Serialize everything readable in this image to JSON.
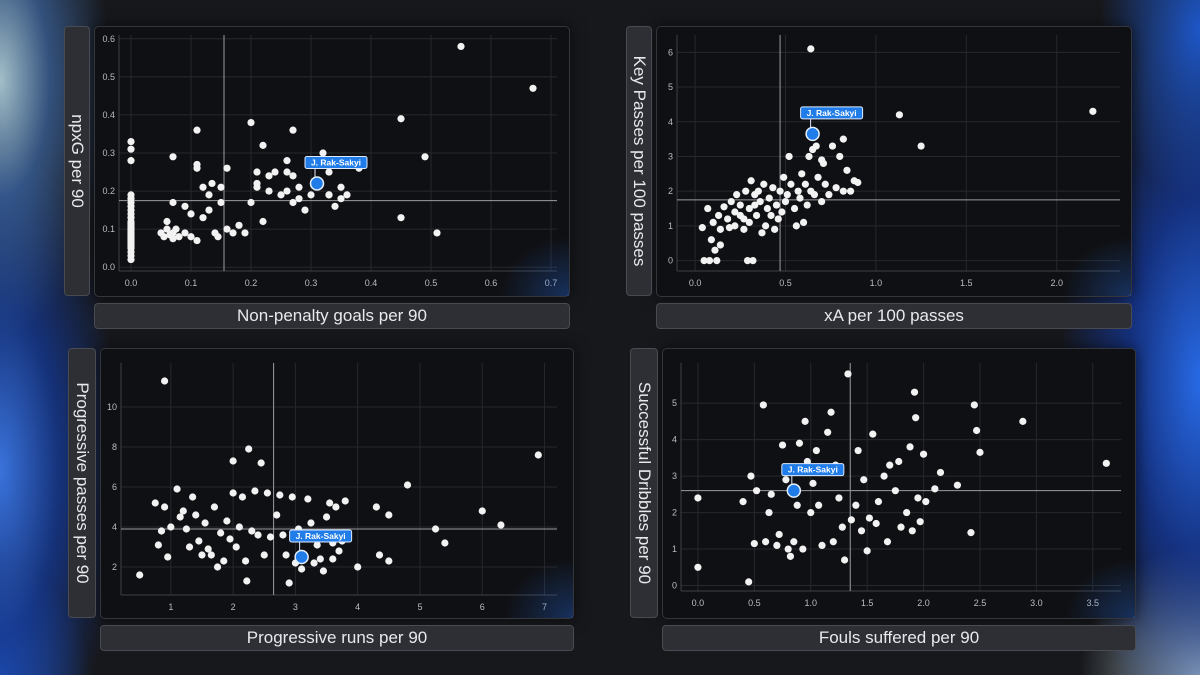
{
  "chart_data": [
    {
      "type": "scatter",
      "xlabel": "Non-penalty goals per 90",
      "ylabel": "npxG per 90",
      "xlim": [
        -0.02,
        0.71
      ],
      "ylim": [
        -0.01,
        0.61
      ],
      "xticks": [
        0.0,
        0.1,
        0.2,
        0.3,
        0.4,
        0.5,
        0.6,
        0.7
      ],
      "yticks": [
        0.0,
        0.1,
        0.2,
        0.3,
        0.4,
        0.5,
        0.6
      ],
      "tick_decimals": 1,
      "avg_x": 0.155,
      "avg_y": 0.175,
      "highlight": {
        "name": "J. Rak-Sakyi",
        "x": 0.31,
        "y": 0.22
      },
      "points": [
        [
          0.0,
          0.33
        ],
        [
          0.0,
          0.31
        ],
        [
          0.0,
          0.28
        ],
        [
          0.0,
          0.19
        ],
        [
          0.0,
          0.18
        ],
        [
          0.0,
          0.17
        ],
        [
          0.0,
          0.16
        ],
        [
          0.0,
          0.15
        ],
        [
          0.0,
          0.14
        ],
        [
          0.0,
          0.13
        ],
        [
          0.0,
          0.12
        ],
        [
          0.0,
          0.115
        ],
        [
          0.0,
          0.11
        ],
        [
          0.0,
          0.105
        ],
        [
          0.0,
          0.1
        ],
        [
          0.0,
          0.095
        ],
        [
          0.0,
          0.09
        ],
        [
          0.0,
          0.085
        ],
        [
          0.0,
          0.08
        ],
        [
          0.0,
          0.075
        ],
        [
          0.0,
          0.07
        ],
        [
          0.0,
          0.065
        ],
        [
          0.0,
          0.06
        ],
        [
          0.0,
          0.055
        ],
        [
          0.0,
          0.05
        ],
        [
          0.0,
          0.04
        ],
        [
          0.0,
          0.03
        ],
        [
          0.0,
          0.02
        ],
        [
          0.05,
          0.09
        ],
        [
          0.055,
          0.08
        ],
        [
          0.06,
          0.12
        ],
        [
          0.06,
          0.1
        ],
        [
          0.065,
          0.085
        ],
        [
          0.07,
          0.17
        ],
        [
          0.07,
          0.09
        ],
        [
          0.07,
          0.075
        ],
        [
          0.075,
          0.1
        ],
        [
          0.08,
          0.08
        ],
        [
          0.07,
          0.29
        ],
        [
          0.09,
          0.16
        ],
        [
          0.09,
          0.09
        ],
        [
          0.1,
          0.08
        ],
        [
          0.1,
          0.14
        ],
        [
          0.11,
          0.36
        ],
        [
          0.11,
          0.27
        ],
        [
          0.11,
          0.26
        ],
        [
          0.11,
          0.07
        ],
        [
          0.12,
          0.21
        ],
        [
          0.12,
          0.13
        ],
        [
          0.13,
          0.15
        ],
        [
          0.13,
          0.19
        ],
        [
          0.135,
          0.22
        ],
        [
          0.14,
          0.09
        ],
        [
          0.145,
          0.08
        ],
        [
          0.15,
          0.21
        ],
        [
          0.15,
          0.17
        ],
        [
          0.16,
          0.1
        ],
        [
          0.16,
          0.26
        ],
        [
          0.17,
          0.09
        ],
        [
          0.18,
          0.11
        ],
        [
          0.19,
          0.09
        ],
        [
          0.2,
          0.38
        ],
        [
          0.2,
          0.17
        ],
        [
          0.21,
          0.22
        ],
        [
          0.21,
          0.25
        ],
        [
          0.21,
          0.21
        ],
        [
          0.22,
          0.32
        ],
        [
          0.22,
          0.12
        ],
        [
          0.23,
          0.2
        ],
        [
          0.23,
          0.24
        ],
        [
          0.24,
          0.25
        ],
        [
          0.25,
          0.19
        ],
        [
          0.26,
          0.25
        ],
        [
          0.26,
          0.2
        ],
        [
          0.26,
          0.28
        ],
        [
          0.27,
          0.36
        ],
        [
          0.27,
          0.24
        ],
        [
          0.28,
          0.18
        ],
        [
          0.27,
          0.17
        ],
        [
          0.28,
          0.21
        ],
        [
          0.29,
          0.15
        ],
        [
          0.3,
          0.19
        ],
        [
          0.32,
          0.3
        ],
        [
          0.33,
          0.25
        ],
        [
          0.33,
          0.19
        ],
        [
          0.33,
          0.19
        ],
        [
          0.34,
          0.16
        ],
        [
          0.35,
          0.21
        ],
        [
          0.35,
          0.18
        ],
        [
          0.36,
          0.19
        ],
        [
          0.38,
          0.26
        ],
        [
          0.45,
          0.39
        ],
        [
          0.45,
          0.13
        ],
        [
          0.49,
          0.29
        ],
        [
          0.51,
          0.09
        ],
        [
          0.55,
          0.58
        ],
        [
          0.67,
          0.47
        ]
      ]
    },
    {
      "type": "scatter",
      "xlabel": "xA per 100 passes",
      "ylabel": "Key Passes per 100 passes",
      "xlim": [
        -0.1,
        2.35
      ],
      "ylim": [
        -0.3,
        6.5
      ],
      "xticks": [
        0.0,
        0.5,
        1.0,
        1.5,
        2.0
      ],
      "yticks": [
        0,
        1,
        2,
        3,
        4,
        5,
        6
      ],
      "tick_decimals_x": 1,
      "tick_decimals_y": 0,
      "avg_x": 0.47,
      "avg_y": 1.75,
      "highlight": {
        "name": "J. Rak-Sakyi",
        "x": 0.65,
        "y": 3.65
      },
      "points": [
        [
          0.04,
          0.95
        ],
        [
          0.05,
          0.0
        ],
        [
          0.07,
          1.5
        ],
        [
          0.08,
          0.0
        ],
        [
          0.09,
          0.6
        ],
        [
          0.1,
          1.1
        ],
        [
          0.11,
          0.3
        ],
        [
          0.12,
          0.0
        ],
        [
          0.13,
          1.3
        ],
        [
          0.14,
          0.9
        ],
        [
          0.14,
          0.45
        ],
        [
          0.16,
          1.55
        ],
        [
          0.18,
          1.2
        ],
        [
          0.19,
          0.95
        ],
        [
          0.2,
          1.7
        ],
        [
          0.22,
          1.0
        ],
        [
          0.22,
          1.4
        ],
        [
          0.23,
          1.9
        ],
        [
          0.25,
          1.3
        ],
        [
          0.25,
          1.6
        ],
        [
          0.27,
          0.9
        ],
        [
          0.27,
          1.2
        ],
        [
          0.28,
          2.0
        ],
        [
          0.29,
          0.0
        ],
        [
          0.3,
          1.1
        ],
        [
          0.3,
          1.5
        ],
        [
          0.31,
          2.3
        ],
        [
          0.32,
          0.0
        ],
        [
          0.33,
          1.6
        ],
        [
          0.33,
          1.9
        ],
        [
          0.34,
          1.3
        ],
        [
          0.35,
          2.0
        ],
        [
          0.36,
          1.7
        ],
        [
          0.37,
          0.8
        ],
        [
          0.38,
          2.2
        ],
        [
          0.39,
          1.0
        ],
        [
          0.4,
          1.5
        ],
        [
          0.41,
          1.8
        ],
        [
          0.42,
          1.3
        ],
        [
          0.43,
          2.1
        ],
        [
          0.44,
          0.9
        ],
        [
          0.45,
          1.6
        ],
        [
          0.46,
          1.2
        ],
        [
          0.47,
          2.0
        ],
        [
          0.48,
          1.4
        ],
        [
          0.49,
          2.4
        ],
        [
          0.5,
          1.7
        ],
        [
          0.51,
          1.9
        ],
        [
          0.52,
          3.0
        ],
        [
          0.53,
          2.2
        ],
        [
          0.55,
          1.5
        ],
        [
          0.56,
          1.0
        ],
        [
          0.57,
          2.0
        ],
        [
          0.58,
          1.8
        ],
        [
          0.59,
          2.5
        ],
        [
          0.6,
          1.1
        ],
        [
          0.61,
          2.2
        ],
        [
          0.62,
          1.6
        ],
        [
          0.63,
          3.0
        ],
        [
          0.64,
          2.0
        ],
        [
          0.65,
          3.2
        ],
        [
          0.66,
          1.9
        ],
        [
          0.67,
          3.3
        ],
        [
          0.68,
          2.4
        ],
        [
          0.7,
          1.7
        ],
        [
          0.71,
          2.8
        ],
        [
          0.72,
          2.2
        ],
        [
          0.74,
          1.9
        ],
        [
          0.76,
          3.3
        ],
        [
          0.78,
          2.1
        ],
        [
          0.8,
          3.0
        ],
        [
          0.82,
          2.0
        ],
        [
          0.84,
          2.6
        ],
        [
          0.86,
          2.0
        ],
        [
          0.88,
          2.3
        ],
        [
          0.9,
          2.25
        ],
        [
          0.64,
          6.1
        ],
        [
          1.13,
          4.2
        ],
        [
          1.25,
          3.3
        ],
        [
          2.2,
          4.3
        ],
        [
          0.82,
          3.5
        ],
        [
          0.7,
          2.9
        ]
      ]
    },
    {
      "type": "scatter",
      "xlabel": "Progressive runs per 90",
      "ylabel": "Progressive passes per 90",
      "xlim": [
        0.2,
        7.2
      ],
      "ylim": [
        0.6,
        12.2
      ],
      "xticks": [
        1,
        2,
        3,
        4,
        5,
        6,
        7
      ],
      "yticks": [
        2,
        4,
        6,
        8,
        10
      ],
      "tick_decimals": 0,
      "avg_x": 2.65,
      "avg_y": 3.9,
      "highlight": {
        "name": "J. Rak-Sakyi",
        "x": 3.1,
        "y": 2.5
      },
      "points": [
        [
          0.5,
          1.6
        ],
        [
          0.75,
          5.2
        ],
        [
          0.8,
          3.1
        ],
        [
          0.85,
          3.8
        ],
        [
          0.9,
          5.0
        ],
        [
          0.95,
          2.5
        ],
        [
          0.9,
          11.3
        ],
        [
          1.0,
          4.0
        ],
        [
          1.1,
          5.9
        ],
        [
          1.15,
          4.5
        ],
        [
          1.2,
          4.8
        ],
        [
          1.25,
          3.9
        ],
        [
          1.3,
          3.0
        ],
        [
          1.35,
          5.5
        ],
        [
          1.4,
          4.6
        ],
        [
          1.45,
          3.3
        ],
        [
          1.5,
          2.6
        ],
        [
          1.55,
          4.2
        ],
        [
          1.6,
          2.9
        ],
        [
          1.65,
          2.6
        ],
        [
          1.7,
          5.0
        ],
        [
          1.75,
          2.0
        ],
        [
          1.8,
          3.7
        ],
        [
          1.85,
          2.3
        ],
        [
          1.9,
          4.3
        ],
        [
          1.95,
          3.4
        ],
        [
          2.0,
          5.7
        ],
        [
          2.05,
          3.0
        ],
        [
          2.0,
          7.3
        ],
        [
          2.1,
          4.0
        ],
        [
          2.15,
          5.5
        ],
        [
          2.2,
          2.3
        ],
        [
          2.22,
          1.3
        ],
        [
          2.25,
          7.9
        ],
        [
          2.3,
          3.8
        ],
        [
          2.35,
          5.8
        ],
        [
          2.4,
          3.6
        ],
        [
          2.45,
          7.2
        ],
        [
          2.5,
          2.6
        ],
        [
          2.55,
          5.7
        ],
        [
          2.6,
          3.5
        ],
        [
          2.7,
          4.6
        ],
        [
          2.75,
          5.6
        ],
        [
          2.8,
          3.6
        ],
        [
          2.85,
          2.6
        ],
        [
          2.9,
          1.2
        ],
        [
          2.95,
          5.5
        ],
        [
          3.0,
          2.2
        ],
        [
          3.05,
          3.9
        ],
        [
          3.1,
          1.9
        ],
        [
          3.2,
          5.4
        ],
        [
          3.25,
          4.2
        ],
        [
          3.3,
          2.2
        ],
        [
          3.35,
          3.1
        ],
        [
          3.4,
          2.4
        ],
        [
          3.45,
          1.8
        ],
        [
          3.5,
          4.5
        ],
        [
          3.55,
          5.2
        ],
        [
          3.6,
          3.2
        ],
        [
          3.6,
          2.4
        ],
        [
          3.65,
          5.0
        ],
        [
          3.7,
          2.8
        ],
        [
          3.75,
          3.3
        ],
        [
          3.8,
          5.3
        ],
        [
          4.0,
          2.0
        ],
        [
          4.3,
          5.0
        ],
        [
          4.35,
          2.6
        ],
        [
          4.5,
          2.3
        ],
        [
          4.5,
          4.6
        ],
        [
          4.8,
          6.1
        ],
        [
          5.25,
          3.9
        ],
        [
          5.4,
          3.2
        ],
        [
          6.0,
          4.8
        ],
        [
          6.3,
          4.1
        ],
        [
          6.9,
          7.6
        ]
      ]
    },
    {
      "type": "scatter",
      "xlabel": "Fouls suffered per 90",
      "ylabel": "Successful Dribbles per 90",
      "xlim": [
        -0.15,
        3.75
      ],
      "ylim": [
        -0.15,
        6.1
      ],
      "xticks": [
        0.0,
        0.5,
        1.0,
        1.5,
        2.0,
        2.5,
        3.0,
        3.5
      ],
      "yticks": [
        0,
        1,
        2,
        3,
        4,
        5
      ],
      "tick_decimals_x": 1,
      "tick_decimals_y": 0,
      "avg_x": 1.35,
      "avg_y": 2.6,
      "highlight": {
        "name": "J. Rak-Sakyi",
        "x": 0.85,
        "y": 2.6
      },
      "points": [
        [
          0.0,
          2.4
        ],
        [
          0.0,
          0.5
        ],
        [
          0.4,
          2.3
        ],
        [
          0.45,
          0.1
        ],
        [
          0.47,
          3.0
        ],
        [
          0.5,
          1.15
        ],
        [
          0.52,
          2.6
        ],
        [
          0.58,
          4.95
        ],
        [
          0.6,
          1.2
        ],
        [
          0.63,
          2.0
        ],
        [
          0.65,
          2.5
        ],
        [
          0.7,
          1.1
        ],
        [
          0.72,
          1.4
        ],
        [
          0.75,
          3.85
        ],
        [
          0.78,
          2.9
        ],
        [
          0.8,
          1.0
        ],
        [
          0.82,
          0.8
        ],
        [
          0.85,
          1.2
        ],
        [
          0.88,
          2.2
        ],
        [
          0.9,
          3.9
        ],
        [
          0.93,
          1.0
        ],
        [
          0.95,
          4.5
        ],
        [
          0.97,
          3.4
        ],
        [
          1.0,
          2.0
        ],
        [
          1.02,
          2.8
        ],
        [
          1.05,
          3.7
        ],
        [
          1.07,
          2.2
        ],
        [
          1.1,
          1.1
        ],
        [
          1.12,
          3.1
        ],
        [
          1.15,
          4.2
        ],
        [
          1.18,
          4.75
        ],
        [
          1.2,
          1.2
        ],
        [
          1.22,
          3.3
        ],
        [
          1.25,
          2.4
        ],
        [
          1.28,
          1.6
        ],
        [
          1.3,
          0.7
        ],
        [
          1.33,
          5.8
        ],
        [
          1.36,
          1.8
        ],
        [
          1.4,
          2.2
        ],
        [
          1.42,
          3.7
        ],
        [
          1.45,
          1.5
        ],
        [
          1.47,
          2.9
        ],
        [
          1.5,
          0.95
        ],
        [
          1.52,
          1.85
        ],
        [
          1.55,
          4.15
        ],
        [
          1.58,
          1.7
        ],
        [
          1.6,
          2.3
        ],
        [
          1.65,
          3.0
        ],
        [
          1.68,
          1.2
        ],
        [
          1.7,
          3.3
        ],
        [
          1.75,
          2.6
        ],
        [
          1.78,
          3.4
        ],
        [
          1.8,
          1.6
        ],
        [
          1.85,
          2.0
        ],
        [
          1.88,
          3.8
        ],
        [
          1.9,
          1.5
        ],
        [
          1.92,
          5.3
        ],
        [
          1.93,
          4.6
        ],
        [
          1.95,
          2.4
        ],
        [
          1.97,
          1.75
        ],
        [
          2.0,
          3.6
        ],
        [
          2.02,
          2.3
        ],
        [
          2.1,
          2.65
        ],
        [
          2.15,
          3.1
        ],
        [
          2.3,
          2.75
        ],
        [
          2.42,
          1.45
        ],
        [
          2.45,
          4.95
        ],
        [
          2.47,
          4.25
        ],
        [
          2.5,
          3.65
        ],
        [
          2.88,
          4.5
        ],
        [
          3.62,
          3.35
        ]
      ]
    }
  ]
}
